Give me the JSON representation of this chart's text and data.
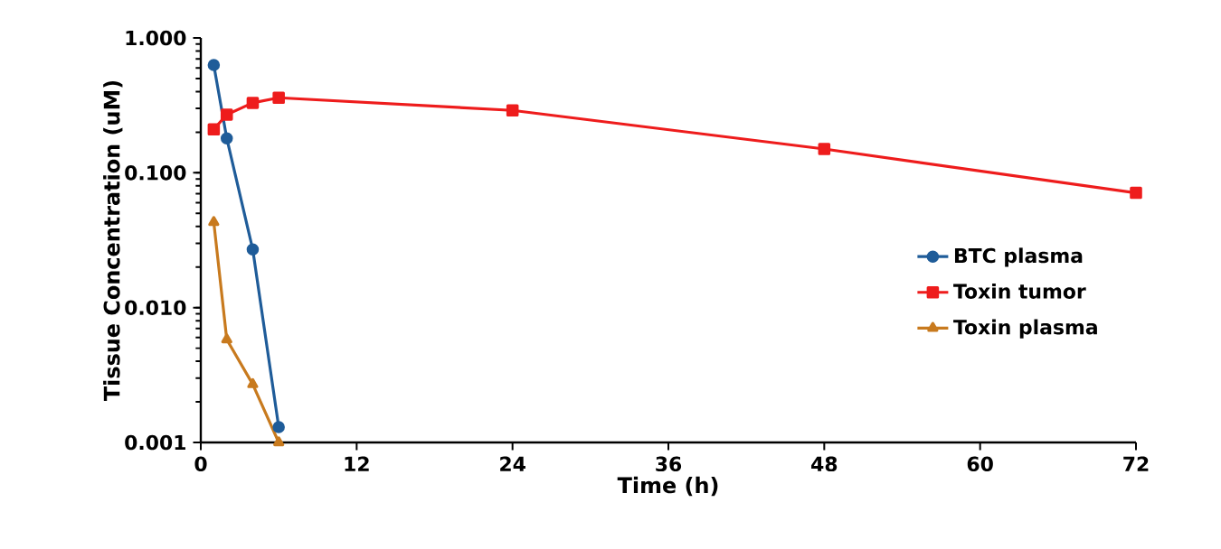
{
  "chart_data": {
    "type": "line",
    "xlabel": "Time (h)",
    "ylabel": "Tissue Concentration (uM)",
    "log": "y",
    "xlim": [
      0,
      72
    ],
    "xticks": [
      0,
      12,
      24,
      36,
      48,
      60,
      72
    ],
    "ylim": [
      0.001,
      1
    ],
    "yticks": [
      {
        "value": 0.001,
        "label": "0.001"
      },
      {
        "value": 0.01,
        "label": "0.010"
      },
      {
        "value": 0.1,
        "label": "0.100"
      },
      {
        "value": 1,
        "label": "1.000"
      }
    ],
    "grid": false,
    "legend": "right",
    "series": [
      {
        "name": "BTC plasma",
        "color": "#1f5c99",
        "marker": "circle",
        "x": [
          1,
          2,
          4,
          6
        ],
        "values": [
          0.63,
          0.18,
          0.027,
          0.0013
        ]
      },
      {
        "name": "Toxin tumor",
        "color": "#ee1c1c",
        "marker": "square",
        "x": [
          1,
          2,
          4,
          6,
          24,
          48,
          72
        ],
        "values": [
          0.21,
          0.27,
          0.33,
          0.36,
          0.29,
          0.15,
          0.071
        ]
      },
      {
        "name": "Toxin plasma",
        "color": "#c87a1e",
        "marker": "triangle",
        "x": [
          1,
          2,
          4,
          6
        ],
        "values": [
          0.043,
          0.0058,
          0.0027,
          0.001
        ]
      }
    ]
  }
}
